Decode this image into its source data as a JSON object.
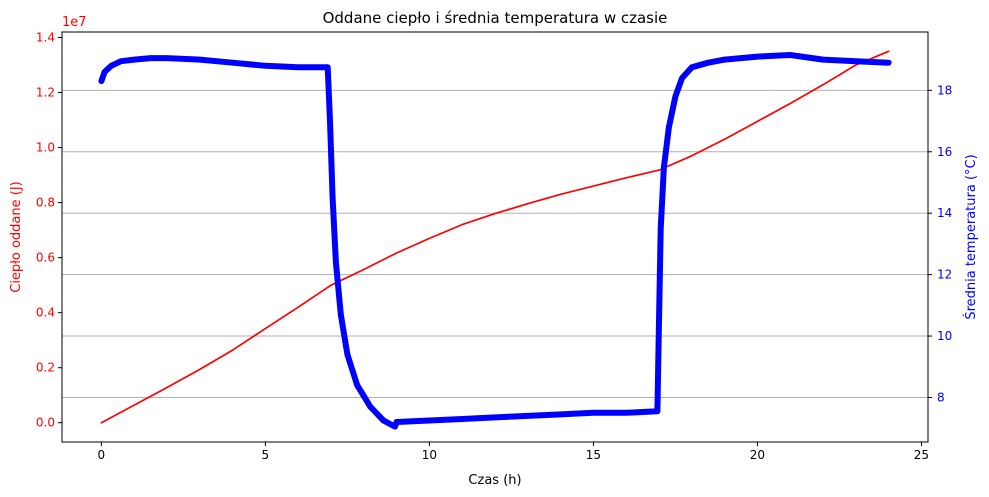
{
  "chart_data": {
    "type": "line",
    "title": "Oddane ciepło i średnia temperatura w czasie",
    "xlabel": "Czas (h)",
    "ylabel_left": "Ciepło oddane (J)",
    "ylabel_right": "Średnia temperatura (°C)",
    "left_axis_multiplier": "1e7",
    "xlim": [
      -1.2,
      25.2
    ],
    "ylim_left": [
      -0.07,
      1.42
    ],
    "ylim_right": [
      6.55,
      19.9
    ],
    "x_ticks": [
      0,
      5,
      10,
      15,
      20,
      25
    ],
    "x_tick_labels": [
      "0",
      "5",
      "10",
      "15",
      "20",
      "25"
    ],
    "y_left_ticks": [
      0.0,
      0.2,
      0.4,
      0.6,
      0.8,
      1.0,
      1.2,
      1.4
    ],
    "y_left_tick_labels": [
      "0.0",
      "0.2",
      "0.4",
      "0.6",
      "0.8",
      "1.0",
      "1.2",
      "1.4"
    ],
    "y_right_ticks": [
      8,
      10,
      12,
      14,
      16,
      18
    ],
    "y_right_tick_labels": [
      "8",
      "10",
      "12",
      "14",
      "16",
      "18"
    ],
    "grid": "horizontal lines at right-axis ticks",
    "colors": {
      "heat": "#ff0000",
      "temperature": "#0000ff",
      "grid": "#b0b0b0",
      "axis": "#000000"
    },
    "series": [
      {
        "axis": "left",
        "color": "#ff0000",
        "x": [
          0,
          1,
          2,
          3,
          4,
          5,
          6,
          7,
          8,
          9,
          10,
          11,
          12,
          13,
          14,
          15,
          16,
          17,
          18,
          19,
          20,
          21,
          22,
          23,
          24
        ],
        "y": [
          0.0,
          0.064,
          0.128,
          0.194,
          0.264,
          0.342,
          0.42,
          0.5,
          0.557,
          0.617,
          0.67,
          0.72,
          0.76,
          0.796,
          0.83,
          0.86,
          0.89,
          0.918,
          0.97,
          1.03,
          1.095,
          1.16,
          1.228,
          1.3,
          1.35
        ]
      },
      {
        "axis": "right",
        "color": "#0000ff",
        "x": [
          0,
          0.1,
          0.3,
          0.6,
          1,
          1.5,
          2,
          3,
          4,
          5,
          6,
          6.9,
          6.97,
          7.05,
          7.15,
          7.3,
          7.5,
          7.8,
          8.2,
          8.6,
          8.95,
          9.0,
          10,
          11,
          12,
          13,
          14,
          15,
          16,
          16.95,
          17.0,
          17.05,
          17.15,
          17.3,
          17.5,
          17.7,
          18,
          18.5,
          19,
          20,
          21,
          22,
          23,
          24
        ],
        "y": [
          18.3,
          18.6,
          18.8,
          18.95,
          19.0,
          19.05,
          19.05,
          19.0,
          18.9,
          18.8,
          18.75,
          18.75,
          17.0,
          14.5,
          12.4,
          10.7,
          9.4,
          8.4,
          7.7,
          7.25,
          7.05,
          7.2,
          7.25,
          7.3,
          7.35,
          7.4,
          7.45,
          7.5,
          7.5,
          7.55,
          10.5,
          13.5,
          15.5,
          16.8,
          17.8,
          18.4,
          18.75,
          18.9,
          19.0,
          19.1,
          19.15,
          19.0,
          18.95,
          18.9
        ]
      }
    ]
  }
}
